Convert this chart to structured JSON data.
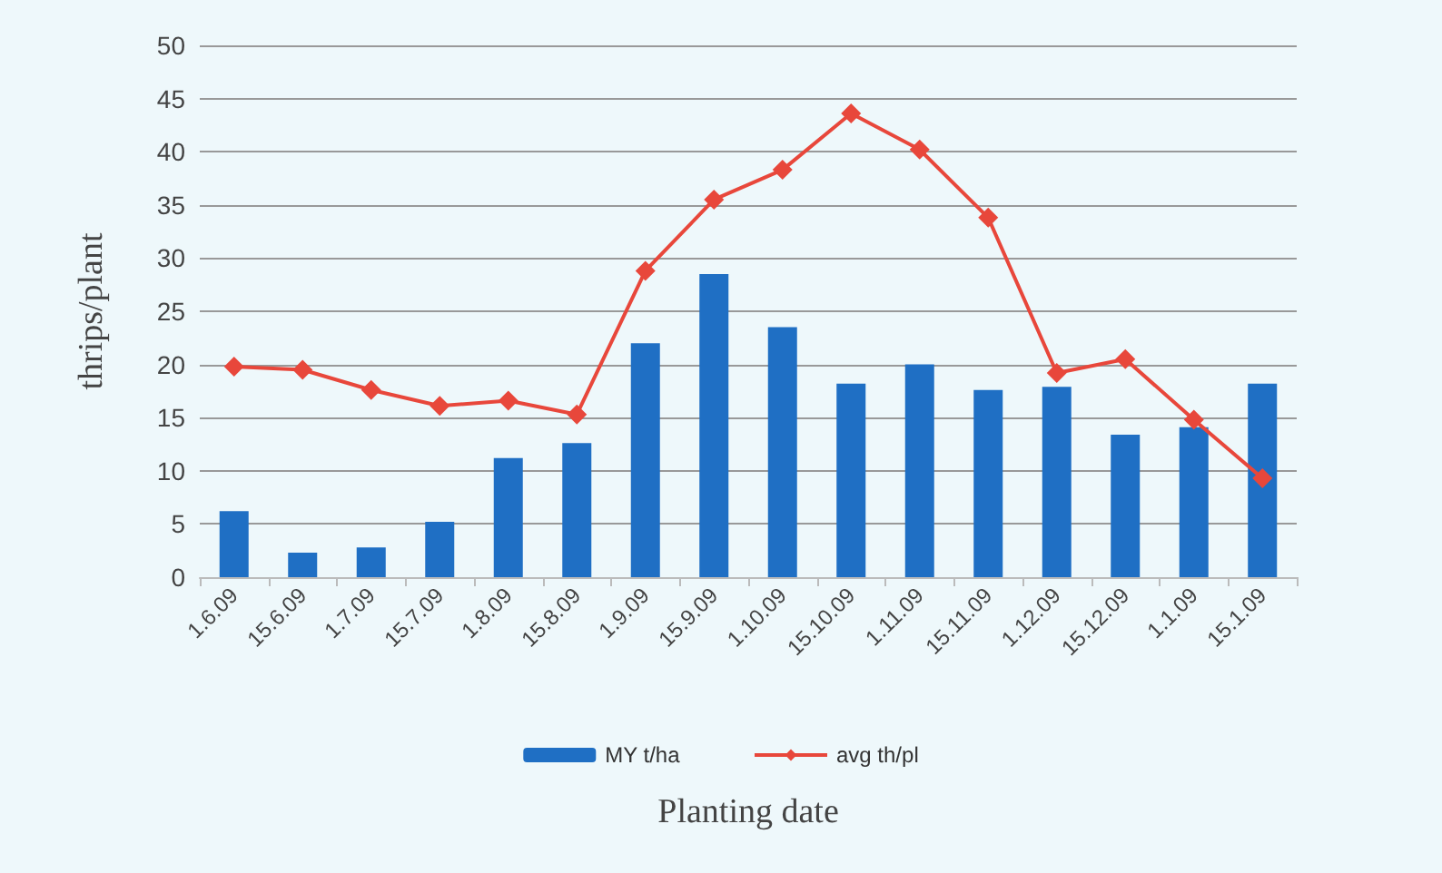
{
  "chart_data": {
    "type": "bar",
    "xlabel": "Planting date",
    "ylabel": "thrips/plant",
    "categories": [
      "1.6.09",
      "15.6.09",
      "1.7.09",
      "15.7.09",
      "1.8.09",
      "15.8.09",
      "1.9.09",
      "15.9.09",
      "1.10.09",
      "15.10.09",
      "1.11.09",
      "15.11.09",
      "1.12.09",
      "15.12.09",
      "1.1.09",
      "15.1.09"
    ],
    "series": [
      {
        "name": "MY t/ha",
        "color": "#1f6fc4",
        "values": [
          6.2,
          2.3,
          2.8,
          5.2,
          11.2,
          12.6,
          22,
          28.5,
          23.5,
          18.2,
          20,
          17.6,
          17.9,
          13.4,
          14.1,
          18.2
        ]
      },
      {
        "name": "avg th/pl",
        "type": "line",
        "color": "#e8473b",
        "marker": "diamond",
        "values": [
          19.8,
          19.5,
          17.6,
          16.1,
          16.6,
          15.3,
          28.8,
          35.5,
          38.3,
          43.6,
          40.2,
          33.8,
          19.2,
          20.5,
          14.8,
          9.3
        ]
      }
    ],
    "ylim": [
      0,
      50
    ],
    "yticks": [
      0,
      5,
      10,
      15,
      20,
      25,
      30,
      35,
      40,
      45,
      50
    ],
    "grid": "y",
    "legend": "bottom"
  }
}
